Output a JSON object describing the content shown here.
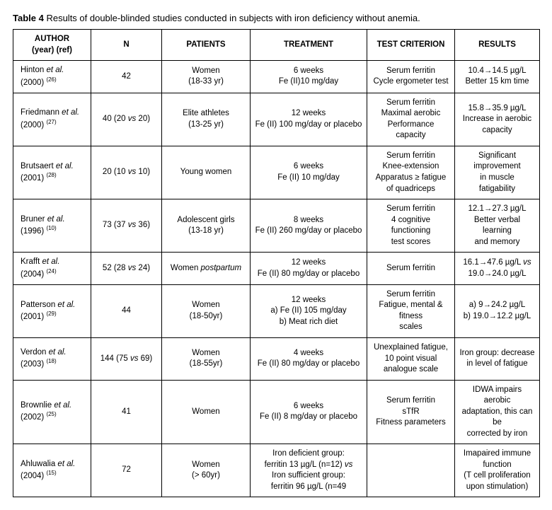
{
  "caption_bold": "Table 4",
  "caption_rest": " Results of double-blinded studies conducted in subjects with iron deficiency without anemia.",
  "headers": {
    "author": "AUTHOR\n(year) (ref)",
    "n": "N",
    "patients": "PATIENTS",
    "treatment": "TREATMENT",
    "criterion": "TEST CRITERION",
    "results": "RESULTS"
  },
  "rows": [
    {
      "author_html": "Hinton <span class=\"it\">et al.</span><br>(2000) <span class=\"ref\">(26)</span>",
      "n": "42",
      "patients": "Women<br>(18-33 yr)",
      "treatment": "6 weeks<br>Fe (II)10 mg/day",
      "criterion": "Serum ferritin<br>Cycle ergometer test",
      "results": "10.4→14.5 µg/L<br>Better 15 km time"
    },
    {
      "author_html": "Friedmann <span class=\"it\">et al.</span><br>(2000) <span class=\"ref\">(27)</span>",
      "n": "40 (20 <span class=\"it\">vs</span> 20)",
      "patients": "Elite athletes<br>(13-25 yr)",
      "treatment": "12 weeks<br>Fe (II) 100 mg/day or placebo",
      "criterion": "Serum ferritin<br>Maximal aerobic<br>Performance capacity",
      "results": "15.8→35.9 µg/L<br>Increase in aerobic<br>capacity"
    },
    {
      "author_html": "Brutsaert <span class=\"it\">et al.</span><br>(2001) <span class=\"ref\">(28)</span>",
      "n": "20 (10 <span class=\"it\">vs</span> 10)",
      "patients": "Young women",
      "treatment": "6 weeks<br>Fe (II) 10 mg/day",
      "criterion": "Serum ferritin<br>Knee-extension<br>Apparatus ≥ fatigue<br>of quadriceps",
      "results": "Significant<br>improvement<br>in muscle<br>fatigability"
    },
    {
      "author_html": "Bruner <span class=\"it\">et al.</span><br>(1996) <span class=\"ref\">(10)</span>",
      "n": "73 (37 <span class=\"it\">vs</span> 36)",
      "patients": "Adolescent girls<br>(13-18 yr)",
      "treatment": "8 weeks<br>Fe (II) 260 mg/day or placebo",
      "criterion": "Serum ferritin<br>4 cognitive functioning<br>test scores",
      "results": "12.1→27.3 µg/L<br>Better verbal learning<br>and memory"
    },
    {
      "author_html": "Krafft <span class=\"it\">et al.</span><br>(2004) <span class=\"ref\">(24)</span>",
      "n": "52 (28 <span class=\"it\">vs</span> 24)",
      "patients": "Women <span class=\"it\">postpartum</span>",
      "treatment": "12 weeks<br>Fe (II) 80 mg/day or placebo",
      "criterion": "Serum ferritin",
      "results": "16.1→47.6 µg/L <span class=\"it\">vs</span><br>19.0→24.0 µg/L"
    },
    {
      "author_html": "Patterson <span class=\"it\">et al.</span><br>(2001) <span class=\"ref\">(29)</span>",
      "n": "44",
      "patients": "Women<br>(18-50yr)",
      "treatment": "12 weeks<br>a) Fe (II) 105 mg/day<br>b) Meat rich diet",
      "criterion": "Serum ferritin<br>Fatigue, mental &amp; fitness<br>scales",
      "results": "a) 9→24.2 µg/L<br>b) 19.0→12.2 µg/L"
    },
    {
      "author_html": "Verdon <span class=\"it\">et al.</span><br>(2003) <span class=\"ref\">(18)</span>",
      "n": "144 (75 <span class=\"it\">vs</span> 69)",
      "patients": "Women<br>(18-55yr)",
      "treatment": "4 weeks<br>Fe (II) 80 mg/day or placebo",
      "criterion": "Unexplained fatigue,<br>10 point visual<br>analogue scale",
      "results": "Iron group: decrease<br>in level of fatigue"
    },
    {
      "author_html": "Brownlie <span class=\"it\">et al.</span><br>(2002) <span class=\"ref\">(25)</span>",
      "n": "41",
      "patients": "Women",
      "treatment": "6 weeks<br>Fe (II) 8 mg/day or placebo",
      "criterion": "Serum ferritin<br>sTfR<br>Fitness parameters",
      "results": "IDWA impairs aerobic<br>adaptation, this can be<br>corrected by iron"
    },
    {
      "author_html": "Ahluwalia <span class=\"it\">et al.</span><br>(2004) <span class=\"ref\">(15)</span>",
      "n": "72",
      "patients": "Women<br>(&gt; 60yr)",
      "treatment": "Iron deficient group:<br>ferritin 13 µg/L (n=12) <span class=\"it\">vs</span><br>Iron sufficient group:<br>ferritin 96 µg/L (n=49",
      "criterion": "",
      "results": "Imapaired immune<br>function<br>(T cell proliferation<br>upon stimulation)"
    }
  ]
}
